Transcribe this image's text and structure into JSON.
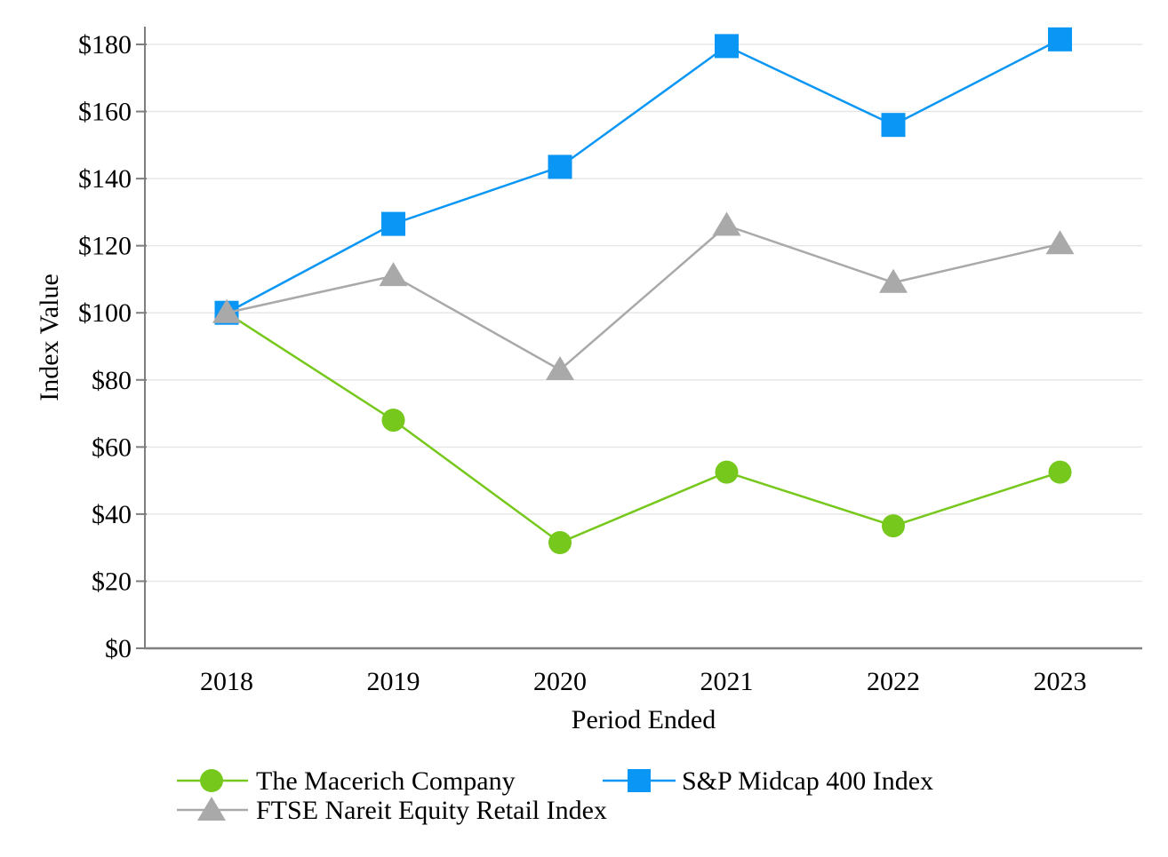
{
  "chart_data": {
    "type": "line",
    "title": "",
    "categories": [
      "2018",
      "2019",
      "2020",
      "2021",
      "2022",
      "2023"
    ],
    "series": [
      {
        "name": "The Macerich Company",
        "marker": "circle",
        "color": "#76C81C",
        "values": [
          100,
          68,
          31.5,
          52.5,
          36.5,
          52.5
        ]
      },
      {
        "name": "S&P Midcap 400 Index",
        "marker": "square",
        "color": "#0A96F5",
        "values": [
          100,
          126.5,
          143.5,
          179.5,
          156,
          181.5
        ]
      },
      {
        "name": "FTSE Nareit Equity Retail Index",
        "marker": "triangle",
        "color": "#A9A9A9",
        "values": [
          100,
          111,
          83,
          126,
          109,
          120.5
        ]
      }
    ],
    "xlabel": "Period Ended",
    "ylabel": "Index Value",
    "ylim": [
      0,
      185
    ],
    "y_ticks": [
      0,
      20,
      40,
      60,
      80,
      100,
      120,
      140,
      160,
      180
    ],
    "tick_prefix": "$",
    "grid": "horizontal",
    "legend_position": "bottom",
    "colors": {
      "grid": "#E7E7E7",
      "axis": "#7F7F7F",
      "text": "#000000",
      "background": "#FFFFFF"
    }
  }
}
